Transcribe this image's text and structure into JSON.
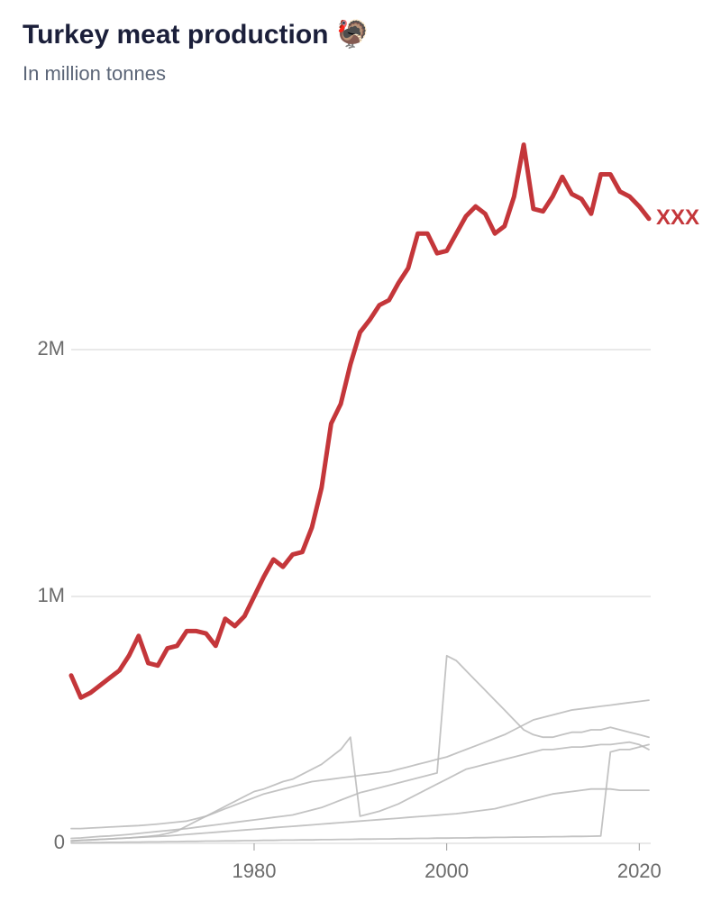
{
  "chart_data": {
    "type": "line",
    "title": "Turkey meat production 🦃",
    "subtitle": "In million tonnes",
    "x": [
      1961,
      1962,
      1963,
      1964,
      1965,
      1966,
      1967,
      1968,
      1969,
      1970,
      1971,
      1972,
      1973,
      1974,
      1975,
      1976,
      1977,
      1978,
      1979,
      1980,
      1981,
      1982,
      1983,
      1984,
      1985,
      1986,
      1987,
      1988,
      1989,
      1990,
      1991,
      1992,
      1993,
      1994,
      1995,
      1996,
      1997,
      1998,
      1999,
      2000,
      2001,
      2002,
      2003,
      2004,
      2005,
      2006,
      2007,
      2008,
      2009,
      2010,
      2011,
      2012,
      2013,
      2014,
      2015,
      2016,
      2017,
      2018,
      2019,
      2020,
      2021
    ],
    "xlim": [
      1961,
      2021
    ],
    "xticks": [
      1980,
      2000,
      2020
    ],
    "ylim": [
      0,
      3000000
    ],
    "yticks": [
      0,
      {
        "value": 1000000,
        "label": "1M"
      },
      {
        "value": 2000000,
        "label": "2M"
      }
    ],
    "grid": true,
    "series": [
      {
        "name": "XXX",
        "color": "#c4363a",
        "values": [
          680000,
          590000,
          610000,
          640000,
          670000,
          700000,
          760000,
          840000,
          730000,
          720000,
          790000,
          800000,
          860000,
          860000,
          850000,
          800000,
          910000,
          880000,
          920000,
          1000000,
          1080000,
          1150000,
          1120000,
          1170000,
          1180000,
          1280000,
          1440000,
          1700000,
          1780000,
          1940000,
          2070000,
          2120000,
          2180000,
          2200000,
          2270000,
          2330000,
          2470000,
          2470000,
          2390000,
          2400000,
          2470000,
          2540000,
          2580000,
          2550000,
          2470000,
          2500000,
          2620000,
          2830000,
          2570000,
          2560000,
          2620000,
          2700000,
          2630000,
          2610000,
          2550000,
          2710000,
          2710000,
          2640000,
          2620000,
          2580000,
          2530000
        ]
      },
      {
        "color": "#b8b8b8",
        "values": [
          20000,
          22000,
          25000,
          28000,
          30000,
          33000,
          36000,
          40000,
          44000,
          48000,
          52000,
          56000,
          60000,
          65000,
          70000,
          75000,
          80000,
          85000,
          90000,
          95000,
          100000,
          105000,
          110000,
          115000,
          125000,
          135000,
          145000,
          160000,
          175000,
          190000,
          205000,
          215000,
          225000,
          235000,
          245000,
          255000,
          265000,
          275000,
          285000,
          760000,
          740000,
          700000,
          660000,
          620000,
          580000,
          540000,
          500000,
          460000,
          440000,
          430000,
          430000,
          440000,
          450000,
          450000,
          460000,
          460000,
          470000,
          460000,
          450000,
          440000,
          430000
        ]
      },
      {
        "color": "#b8b8b8",
        "values": [
          60000,
          60000,
          62000,
          64000,
          66000,
          68000,
          70000,
          72000,
          75000,
          78000,
          82000,
          86000,
          90000,
          100000,
          110000,
          125000,
          140000,
          155000,
          170000,
          185000,
          200000,
          210000,
          220000,
          230000,
          240000,
          250000,
          255000,
          260000,
          265000,
          270000,
          275000,
          280000,
          285000,
          290000,
          300000,
          310000,
          320000,
          330000,
          340000,
          350000,
          365000,
          380000,
          395000,
          410000,
          425000,
          440000,
          460000,
          480000,
          500000,
          510000,
          520000,
          530000,
          540000,
          545000,
          550000,
          555000,
          560000,
          565000,
          570000,
          575000,
          580000
        ]
      },
      {
        "color": "#b8b8b8",
        "values": [
          10000,
          12000,
          14000,
          16000,
          18000,
          20000,
          22000,
          25000,
          28000,
          32000,
          40000,
          50000,
          70000,
          90000,
          110000,
          130000,
          150000,
          170000,
          190000,
          210000,
          220000,
          235000,
          250000,
          260000,
          280000,
          300000,
          320000,
          350000,
          380000,
          430000,
          110000,
          120000,
          130000,
          145000,
          160000,
          180000,
          200000,
          220000,
          240000,
          260000,
          280000,
          300000,
          310000,
          320000,
          330000,
          340000,
          350000,
          360000,
          370000,
          380000,
          380000,
          385000,
          390000,
          390000,
          395000,
          400000,
          400000,
          405000,
          410000,
          400000,
          380000
        ]
      },
      {
        "color": "#b8b8b8",
        "values": [
          2000,
          2000,
          3000,
          3000,
          4000,
          4000,
          5000,
          5000,
          6000,
          6000,
          7000,
          7000,
          8000,
          8000,
          9000,
          9000,
          10000,
          10000,
          11000,
          11000,
          12000,
          12000,
          13000,
          13000,
          14000,
          14000,
          15000,
          15000,
          16000,
          16000,
          17000,
          17000,
          18000,
          18000,
          19000,
          19000,
          20000,
          20000,
          21000,
          21000,
          22000,
          22000,
          23000,
          23000,
          24000,
          24000,
          25000,
          25000,
          26000,
          26000,
          27000,
          27000,
          28000,
          28000,
          29000,
          30000,
          370000,
          380000,
          380000,
          390000,
          400000
        ]
      },
      {
        "color": "#b8b8b8",
        "values": [
          10000,
          12000,
          14000,
          16000,
          18000,
          20000,
          22000,
          24000,
          26000,
          28000,
          30000,
          33000,
          36000,
          39000,
          42000,
          45000,
          48000,
          51000,
          54000,
          57000,
          60000,
          63000,
          66000,
          69000,
          72000,
          75000,
          78000,
          81000,
          84000,
          87000,
          90000,
          93000,
          96000,
          99000,
          102000,
          105000,
          108000,
          111000,
          114000,
          117000,
          120000,
          125000,
          130000,
          135000,
          140000,
          150000,
          160000,
          170000,
          180000,
          190000,
          200000,
          205000,
          210000,
          215000,
          220000,
          220000,
          220000,
          215000,
          215000,
          215000,
          215000
        ]
      }
    ]
  }
}
